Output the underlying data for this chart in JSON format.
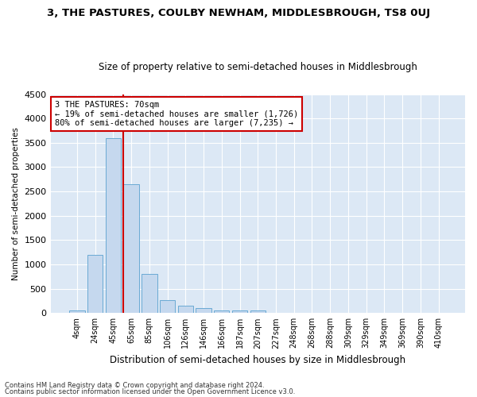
{
  "title": "3, THE PASTURES, COULBY NEWHAM, MIDDLESBROUGH, TS8 0UJ",
  "subtitle": "Size of property relative to semi-detached houses in Middlesbrough",
  "xlabel": "Distribution of semi-detached houses by size in Middlesbrough",
  "ylabel": "Number of semi-detached properties",
  "categories": [
    "4sqm",
    "24sqm",
    "45sqm",
    "65sqm",
    "85sqm",
    "106sqm",
    "126sqm",
    "146sqm",
    "166sqm",
    "187sqm",
    "207sqm",
    "227sqm",
    "248sqm",
    "268sqm",
    "288sqm",
    "309sqm",
    "329sqm",
    "349sqm",
    "369sqm",
    "390sqm",
    "410sqm"
  ],
  "values": [
    50,
    1200,
    3600,
    2650,
    800,
    270,
    160,
    110,
    60,
    55,
    50,
    0,
    0,
    0,
    0,
    0,
    0,
    0,
    0,
    0,
    0
  ],
  "bar_color": "#c5d8ee",
  "bar_edge_color": "#6aaad4",
  "property_label": "3 THE PASTURES: 70sqm",
  "pct_smaller": 19,
  "n_smaller": 1726,
  "pct_larger": 80,
  "n_larger": 7235,
  "vline_bin_index": 3,
  "ylim": [
    0,
    4500
  ],
  "yticks": [
    0,
    500,
    1000,
    1500,
    2000,
    2500,
    3000,
    3500,
    4000,
    4500
  ],
  "annotation_box_color": "#ffffff",
  "annotation_box_edge": "#cc0000",
  "vline_color": "#cc0000",
  "background_color": "#dce8f5",
  "grid_color": "#ffffff",
  "footer1": "Contains HM Land Registry data © Crown copyright and database right 2024.",
  "footer2": "Contains public sector information licensed under the Open Government Licence v3.0."
}
